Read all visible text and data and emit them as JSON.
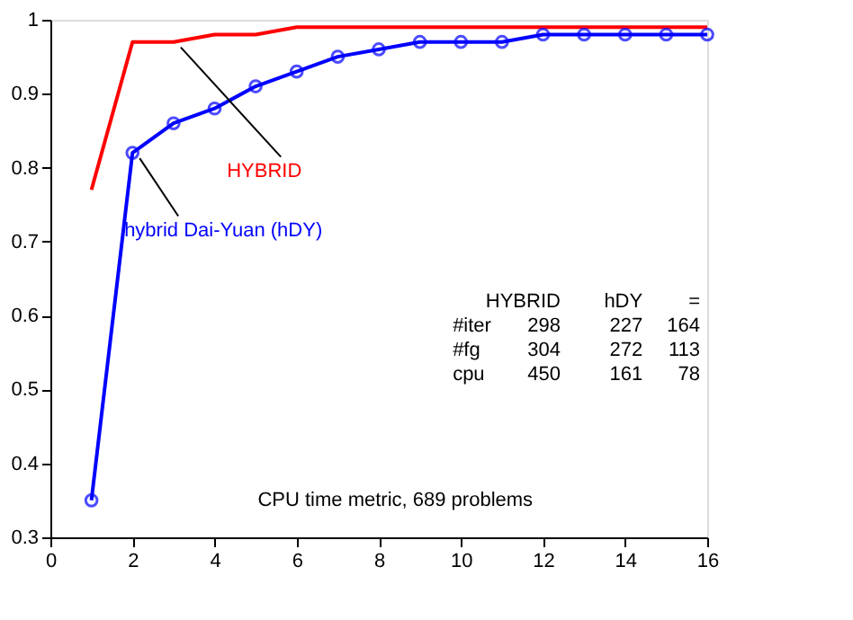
{
  "chart_data": {
    "type": "line",
    "x": [
      1,
      2,
      3,
      4,
      5,
      6,
      7,
      8,
      9,
      10,
      11,
      12,
      13,
      14,
      15,
      16
    ],
    "series": [
      {
        "name": "HYBRID",
        "color": "#ff0000",
        "marker": "none",
        "values": [
          0.77,
          0.97,
          0.97,
          0.98,
          0.98,
          0.99,
          0.99,
          0.99,
          0.99,
          0.99,
          0.99,
          0.99,
          0.99,
          0.99,
          0.99,
          0.99
        ]
      },
      {
        "name": "hybrid Dai-Yuan (hDY)",
        "color": "#0000ff",
        "marker": "circle",
        "values": [
          0.35,
          0.82,
          0.86,
          0.88,
          0.91,
          0.93,
          0.95,
          0.96,
          0.97,
          0.97,
          0.97,
          0.98,
          0.98,
          0.98,
          0.98,
          0.98
        ]
      }
    ],
    "xlim": [
      0,
      16
    ],
    "xticks": [
      0,
      2,
      4,
      6,
      8,
      10,
      12,
      14,
      16
    ],
    "ylim": [
      0.3,
      1
    ],
    "yticks": [
      0.3,
      0.4,
      0.5,
      0.6,
      0.7,
      0.8,
      0.9,
      {
        "value": 1,
        "label": "1"
      }
    ],
    "grid": false,
    "line_style": "solid",
    "annotations": [
      "HYBRID hDY =",
      "#iter 298 227 164",
      "#fg 304 272 113",
      "cpu 450 161 78",
      "CPU time metric, 689 problems"
    ]
  }
}
